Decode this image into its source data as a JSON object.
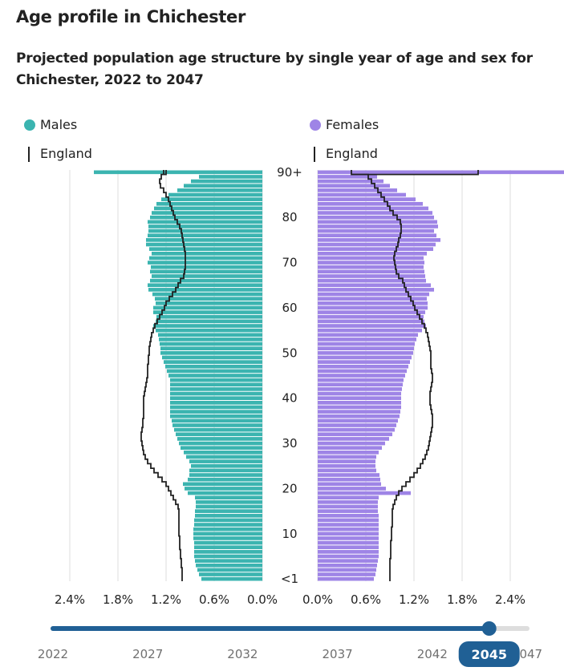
{
  "page": {
    "title": "Age profile in Chichester"
  },
  "chart_data": {
    "type": "population-pyramid",
    "title": "Projected population age structure by single year of age and sex for Chichester, 2022 to 2047",
    "selected_year": "2045",
    "colors": {
      "male": "#3bb4b0",
      "female": "#9e84e6",
      "england_line": "#222222",
      "slider_track": "#206095",
      "slider_rest": "#dddddd",
      "grid": "#dddddd"
    },
    "legend": [
      {
        "label": "Males",
        "marker": "teal-dot"
      },
      {
        "label": "Females",
        "marker": "purple-dot"
      },
      {
        "label": "England",
        "marker": "black-line"
      },
      {
        "label": "England",
        "marker": "black-line"
      }
    ],
    "x_ticks_left": [
      "2.4%",
      "1.8%",
      "1.2%",
      "0.6%",
      "0.0%"
    ],
    "x_ticks_right": [
      "0.0%",
      "0.6%",
      "1.2%",
      "1.8%",
      "2.4%"
    ],
    "x_max_pct": 2.4,
    "y_labels": [
      {
        "age": 90,
        "label": "90+"
      },
      {
        "age": 80,
        "label": "80"
      },
      {
        "age": 70,
        "label": "70"
      },
      {
        "age": 60,
        "label": "60"
      },
      {
        "age": 50,
        "label": "50"
      },
      {
        "age": 40,
        "label": "40"
      },
      {
        "age": 30,
        "label": "30"
      },
      {
        "age": 20,
        "label": "20"
      },
      {
        "age": 10,
        "label": "10"
      },
      {
        "age": 0,
        "label": "<1"
      }
    ],
    "ages": [
      0,
      1,
      2,
      3,
      4,
      5,
      6,
      7,
      8,
      9,
      10,
      11,
      12,
      13,
      14,
      15,
      16,
      17,
      18,
      19,
      20,
      21,
      22,
      23,
      24,
      25,
      26,
      27,
      28,
      29,
      30,
      31,
      32,
      33,
      34,
      35,
      36,
      37,
      38,
      39,
      40,
      41,
      42,
      43,
      44,
      45,
      46,
      47,
      48,
      49,
      50,
      51,
      52,
      53,
      54,
      55,
      56,
      57,
      58,
      59,
      60,
      61,
      62,
      63,
      64,
      65,
      66,
      67,
      68,
      69,
      70,
      71,
      72,
      73,
      74,
      75,
      76,
      77,
      78,
      79,
      80,
      81,
      82,
      83,
      84,
      85,
      86,
      87,
      88,
      89,
      "90+"
    ],
    "males": [
      0.76,
      0.79,
      0.81,
      0.83,
      0.84,
      0.85,
      0.85,
      0.85,
      0.85,
      0.86,
      0.86,
      0.86,
      0.85,
      0.85,
      0.84,
      0.84,
      0.83,
      0.83,
      0.84,
      0.93,
      0.97,
      0.99,
      0.93,
      0.91,
      0.91,
      0.89,
      0.91,
      0.95,
      0.98,
      1.02,
      1.04,
      1.06,
      1.08,
      1.1,
      1.12,
      1.13,
      1.15,
      1.15,
      1.15,
      1.15,
      1.15,
      1.15,
      1.15,
      1.15,
      1.15,
      1.17,
      1.19,
      1.21,
      1.23,
      1.25,
      1.27,
      1.27,
      1.28,
      1.29,
      1.3,
      1.33,
      1.36,
      1.33,
      1.32,
      1.36,
      1.36,
      1.33,
      1.34,
      1.37,
      1.42,
      1.43,
      1.4,
      1.38,
      1.4,
      1.39,
      1.43,
      1.41,
      1.38,
      1.41,
      1.45,
      1.45,
      1.43,
      1.42,
      1.42,
      1.43,
      1.4,
      1.38,
      1.35,
      1.32,
      1.26,
      1.17,
      1.06,
      0.98,
      0.89,
      0.79,
      2.1
    ],
    "males_england": [
      1.0,
      1.0,
      1.0,
      1.01,
      1.01,
      1.02,
      1.02,
      1.03,
      1.03,
      1.03,
      1.04,
      1.04,
      1.04,
      1.04,
      1.04,
      1.04,
      1.05,
      1.08,
      1.11,
      1.14,
      1.17,
      1.2,
      1.25,
      1.3,
      1.35,
      1.39,
      1.43,
      1.46,
      1.48,
      1.49,
      1.5,
      1.51,
      1.51,
      1.5,
      1.49,
      1.49,
      1.48,
      1.48,
      1.48,
      1.48,
      1.48,
      1.47,
      1.46,
      1.45,
      1.44,
      1.43,
      1.43,
      1.43,
      1.42,
      1.42,
      1.41,
      1.41,
      1.4,
      1.39,
      1.38,
      1.36,
      1.34,
      1.31,
      1.28,
      1.25,
      1.22,
      1.2,
      1.16,
      1.12,
      1.08,
      1.05,
      1.02,
      0.98,
      0.97,
      0.96,
      0.96,
      0.96,
      0.96,
      0.97,
      0.98,
      0.99,
      1.0,
      1.01,
      1.03,
      1.06,
      1.09,
      1.11,
      1.13,
      1.15,
      1.17,
      1.2,
      1.23,
      1.27,
      1.28,
      1.26,
      1.23
    ],
    "females": [
      0.7,
      0.72,
      0.73,
      0.74,
      0.75,
      0.76,
      0.76,
      0.76,
      0.76,
      0.76,
      0.76,
      0.76,
      0.76,
      0.76,
      0.76,
      0.75,
      0.75,
      0.75,
      0.76,
      1.16,
      0.85,
      0.79,
      0.78,
      0.77,
      0.73,
      0.72,
      0.72,
      0.73,
      0.76,
      0.8,
      0.84,
      0.89,
      0.93,
      0.96,
      0.98,
      1.0,
      1.02,
      1.03,
      1.04,
      1.04,
      1.04,
      1.04,
      1.05,
      1.06,
      1.07,
      1.09,
      1.11,
      1.13,
      1.15,
      1.17,
      1.19,
      1.2,
      1.21,
      1.23,
      1.25,
      1.3,
      1.35,
      1.33,
      1.32,
      1.34,
      1.37,
      1.37,
      1.36,
      1.39,
      1.45,
      1.41,
      1.35,
      1.34,
      1.33,
      1.32,
      1.33,
      1.32,
      1.36,
      1.44,
      1.47,
      1.53,
      1.48,
      1.45,
      1.5,
      1.49,
      1.45,
      1.43,
      1.38,
      1.31,
      1.22,
      1.1,
      0.99,
      0.9,
      0.82,
      0.74,
      3.1
    ],
    "females_england": [
      0.9,
      0.9,
      0.9,
      0.9,
      0.9,
      0.91,
      0.91,
      0.91,
      0.91,
      0.92,
      0.92,
      0.92,
      0.93,
      0.93,
      0.93,
      0.93,
      0.94,
      0.96,
      0.98,
      1.01,
      1.05,
      1.1,
      1.15,
      1.2,
      1.24,
      1.28,
      1.31,
      1.34,
      1.36,
      1.38,
      1.39,
      1.4,
      1.41,
      1.42,
      1.43,
      1.43,
      1.43,
      1.42,
      1.41,
      1.4,
      1.4,
      1.4,
      1.41,
      1.42,
      1.43,
      1.43,
      1.42,
      1.41,
      1.41,
      1.41,
      1.41,
      1.4,
      1.39,
      1.38,
      1.37,
      1.35,
      1.33,
      1.3,
      1.27,
      1.24,
      1.21,
      1.19,
      1.16,
      1.13,
      1.1,
      1.08,
      1.06,
      1.01,
      0.98,
      0.97,
      0.96,
      0.95,
      0.96,
      0.98,
      1.0,
      1.01,
      1.03,
      1.04,
      1.04,
      1.03,
      0.99,
      0.94,
      0.9,
      0.87,
      0.83,
      0.79,
      0.75,
      0.71,
      0.67,
      0.63,
      0.42
    ],
    "england_oversize": {
      "males_90plus": 1.2,
      "females_90plus": 2.0
    }
  },
  "slider": {
    "labels": [
      "2022",
      "2027",
      "2032",
      "2037",
      "2042",
      "2047"
    ],
    "min": 2022,
    "max": 2047,
    "value": 2045
  }
}
